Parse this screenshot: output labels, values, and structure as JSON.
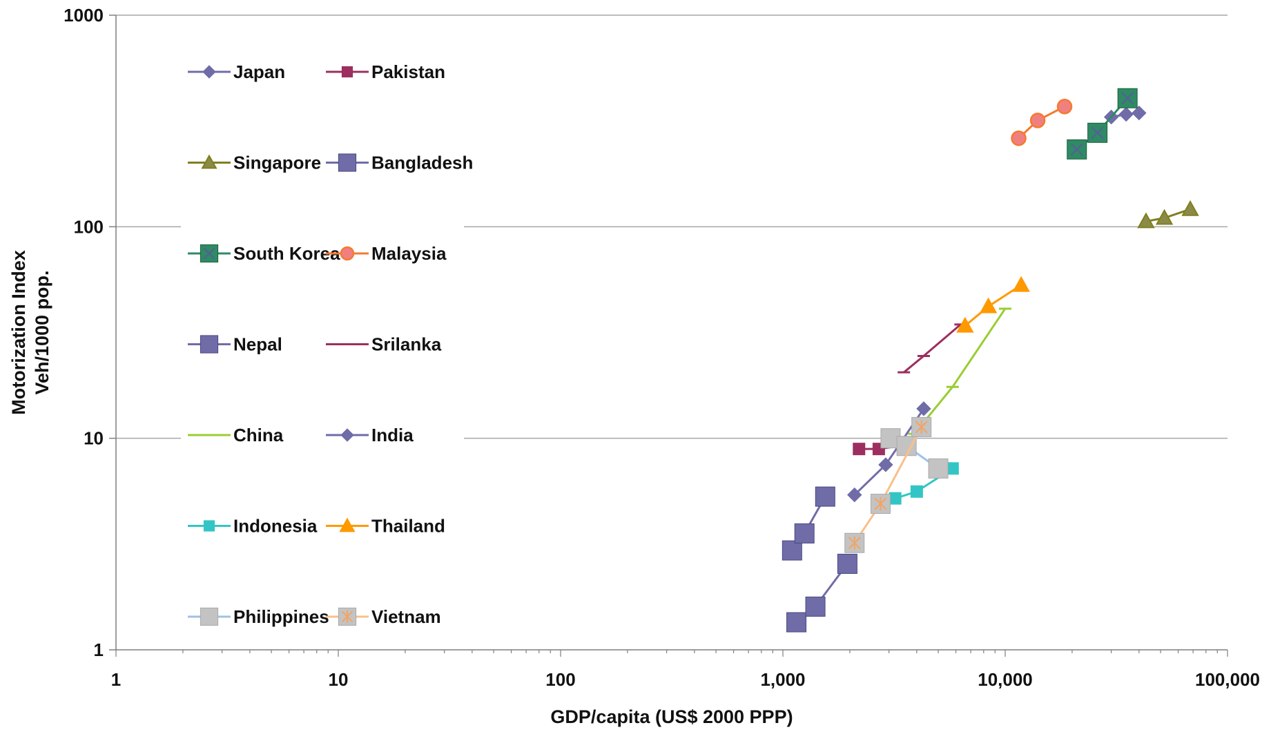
{
  "chart_data": {
    "type": "scatter",
    "title": "",
    "xlabel": "GDP/capita (US$ 2000 PPP)",
    "ylabel_lines": [
      "Motorization Index",
      "Veh/1000 pop."
    ],
    "x_scale": "log",
    "y_scale": "log",
    "xlim": [
      1,
      100000
    ],
    "ylim": [
      1,
      1000
    ],
    "x_ticks": [
      {
        "value": 1,
        "label": "1"
      },
      {
        "value": 10,
        "label": "10"
      },
      {
        "value": 100,
        "label": "100"
      },
      {
        "value": 1000,
        "label": "1,000"
      },
      {
        "value": 10000,
        "label": "10,000"
      },
      {
        "value": 100000,
        "label": "100,000"
      }
    ],
    "y_ticks": [
      {
        "value": 1,
        "label": "1"
      },
      {
        "value": 10,
        "label": "10"
      },
      {
        "value": 100,
        "label": "100"
      },
      {
        "value": 1000,
        "label": "1000"
      }
    ],
    "grid": "horizontal",
    "legend_position": "inside-left",
    "series": [
      {
        "name": "Japan",
        "color": "#6f6ca8",
        "marker": "diamond",
        "x": [
          30000,
          35000,
          40000
        ],
        "y": [
          330,
          340,
          345
        ]
      },
      {
        "name": "Pakistan",
        "color": "#9c2f5f",
        "marker": "square-small",
        "x": [
          2200,
          2700,
          3600
        ],
        "y": [
          8.9,
          8.9,
          9.3
        ]
      },
      {
        "name": "Singapore",
        "color": "#7f7f1e",
        "marker": "triangle",
        "x": [
          43000,
          52000,
          68000
        ],
        "y": [
          106,
          110,
          121
        ]
      },
      {
        "name": "Bangladesh",
        "color": "#6f6ca8",
        "marker": "square-large",
        "x": [
          1150,
          1400,
          1950
        ],
        "y": [
          1.35,
          1.6,
          2.55
        ]
      },
      {
        "name": "South Korea",
        "color": "#2e8b63",
        "marker": "square-x",
        "x": [
          21000,
          26000,
          35500
        ],
        "y": [
          232,
          278,
          405
        ]
      },
      {
        "name": "Malaysia",
        "color": "#f47a30",
        "marker": "circle",
        "x": [
          11500,
          14000,
          18500
        ],
        "y": [
          262,
          318,
          370
        ]
      },
      {
        "name": "Nepal",
        "color": "#6f6ca8",
        "marker": "square-large",
        "x": [
          1100,
          1250,
          1550
        ],
        "y": [
          2.95,
          3.55,
          5.3
        ]
      },
      {
        "name": "Srilanka",
        "color": "#9c2f5f",
        "marker": "dash",
        "x": [
          3500,
          4300,
          6300
        ],
        "y": [
          20.5,
          24.5,
          34.5
        ]
      },
      {
        "name": "China",
        "color": "#9acd32",
        "marker": "dash",
        "x": [
          3900,
          5800,
          10000
        ],
        "y": [
          10.5,
          17.5,
          41
        ]
      },
      {
        "name": "India",
        "color": "#6f6ca8",
        "marker": "diamond",
        "x": [
          2100,
          2900,
          4300
        ],
        "y": [
          5.4,
          7.5,
          13.8
        ]
      },
      {
        "name": "Indonesia",
        "color": "#33c5c5",
        "marker": "square-small",
        "x": [
          3200,
          4000,
          5800
        ],
        "y": [
          5.2,
          5.6,
          7.2
        ]
      },
      {
        "name": "Thailand",
        "color": "#ff9900",
        "marker": "triangle",
        "x": [
          6600,
          8400,
          11800
        ],
        "y": [
          34,
          42,
          53
        ]
      },
      {
        "name": "Philippines",
        "color": "#9ec2e6",
        "marker": "square-grey",
        "x": [
          3050,
          3600,
          5000
        ],
        "y": [
          10,
          9.2,
          7.2
        ]
      },
      {
        "name": "Vietnam",
        "color": "#f8c08a",
        "marker": "square-grey-x",
        "x": [
          2100,
          2750,
          4200
        ],
        "y": [
          3.2,
          4.9,
          11.3
        ]
      }
    ]
  }
}
